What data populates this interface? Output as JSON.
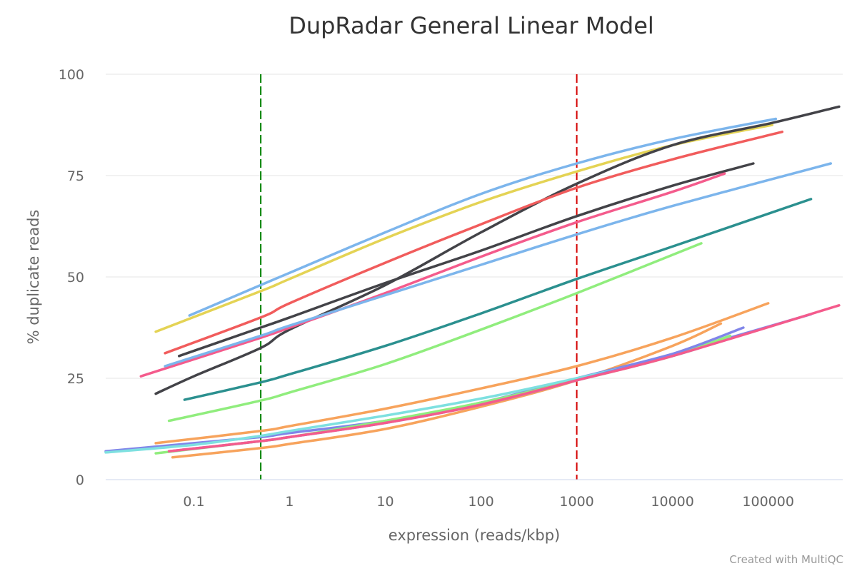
{
  "chart_data": {
    "type": "line",
    "title": "DupRadar General Linear Model",
    "xlabel": "expression (reads/kbp)",
    "ylabel": "% duplicate reads",
    "x_scale": "log",
    "xlim": [
      0.012,
      600000
    ],
    "ylim": [
      0,
      100
    ],
    "x_ticks": [
      {
        "value": 0.1,
        "label": "0.1"
      },
      {
        "value": 1,
        "label": "1"
      },
      {
        "value": 10,
        "label": "10"
      },
      {
        "value": 100,
        "label": "100"
      },
      {
        "value": 1000,
        "label": "1000"
      },
      {
        "value": 10000,
        "label": "10000"
      },
      {
        "value": 100000,
        "label": "100000"
      }
    ],
    "y_ticks": [
      {
        "value": 0,
        "label": "0"
      },
      {
        "value": 25,
        "label": "25"
      },
      {
        "value": 50,
        "label": "50"
      },
      {
        "value": 75,
        "label": "75"
      },
      {
        "value": 100,
        "label": "100"
      }
    ],
    "grid": {
      "horizontal": true,
      "vertical": false
    },
    "reference_lines": [
      {
        "x": 0.5,
        "color": "#008000",
        "dash": "dashed"
      },
      {
        "x": 1000,
        "color": "#d40000",
        "dash": "dashed"
      }
    ],
    "credit": "Created with MultiQC",
    "series": [
      {
        "color": "#7cb5ec",
        "x": [
          0.09,
          0.5,
          1,
          10,
          100,
          1000,
          10000,
          120000
        ],
        "y": [
          40.5,
          48,
          51,
          61,
          70.5,
          78,
          84,
          89
        ]
      },
      {
        "color": "#e4d354",
        "x": [
          0.04,
          0.5,
          1,
          10,
          100,
          1000,
          10000,
          110000
        ],
        "y": [
          36.5,
          46.5,
          49.5,
          59.5,
          68.5,
          76,
          82.5,
          87.5
        ]
      },
      {
        "color": "#434348",
        "x": [
          0.04,
          0.1,
          0.5,
          1,
          10,
          100,
          1000,
          10000,
          110000,
          550000
        ],
        "y": [
          21.2,
          25.5,
          32.5,
          37,
          48,
          61,
          73,
          82.5,
          88,
          92
        ]
      },
      {
        "color": "#f15c5c",
        "x": [
          0.05,
          0.5,
          1,
          10,
          100,
          1000,
          10000,
          140000
        ],
        "y": [
          31.2,
          40,
          43.5,
          53.5,
          63,
          72,
          79,
          85.8
        ]
      },
      {
        "color": "#434348",
        "x": [
          0.07,
          0.5,
          1,
          10,
          100,
          1000,
          10000,
          70000
        ],
        "y": [
          30.5,
          37.5,
          40,
          48.5,
          56.5,
          65,
          72.5,
          78
        ]
      },
      {
        "color": "#f45b8c",
        "x": [
          0.028,
          0.5,
          1,
          10,
          100,
          1000,
          10000,
          35000
        ],
        "y": [
          25.5,
          35,
          37.5,
          46,
          55,
          63.5,
          71,
          75.5
        ]
      },
      {
        "color": "#7cb5ec",
        "x": [
          0.05,
          0.5,
          1,
          10,
          100,
          1000,
          10000,
          450000
        ],
        "y": [
          28,
          35.5,
          38,
          45.5,
          53,
          60.5,
          67.5,
          78
        ]
      },
      {
        "color": "#2b908f",
        "x": [
          0.08,
          0.5,
          1,
          10,
          100,
          1000,
          10000,
          280000
        ],
        "y": [
          19.7,
          24,
          26,
          33,
          41,
          49.5,
          57.5,
          69.2
        ]
      },
      {
        "color": "#90ed7d",
        "x": [
          0.055,
          0.5,
          1,
          10,
          100,
          1000,
          20000
        ],
        "y": [
          14.5,
          19.5,
          21.5,
          28.5,
          37,
          46,
          58.3
        ]
      },
      {
        "color": "#f7a35c",
        "x": [
          0.04,
          0.5,
          1,
          10,
          100,
          1000,
          10000,
          100000
        ],
        "y": [
          9,
          12,
          13.2,
          17.5,
          22.5,
          28,
          35,
          43.5
        ]
      },
      {
        "color": "#f7a35c",
        "x": [
          0.06,
          0.5,
          1,
          10,
          100,
          1000,
          10000,
          32000
        ],
        "y": [
          5.5,
          7.8,
          8.8,
          12.5,
          18,
          24.5,
          33,
          38.5
        ]
      },
      {
        "color": "#8085e9",
        "x": [
          0.012,
          0.1,
          0.5,
          1,
          10,
          100,
          1000,
          10000,
          280000
        ],
        "y": [
          7,
          9,
          10.5,
          11.5,
          14.5,
          19,
          25,
          31,
          40.8
        ]
      },
      {
        "color": "#7ee0e0",
        "x": [
          0.012,
          0.1,
          0.5,
          1,
          10,
          100,
          1000,
          10000,
          40000
        ],
        "y": [
          6.7,
          8.6,
          10.8,
          12,
          15.8,
          20,
          25,
          30.5,
          35
        ]
      },
      {
        "color": "#90ed7d",
        "x": [
          0.04,
          0.5,
          1,
          10,
          100,
          1000,
          10000,
          40000
        ],
        "y": [
          6.5,
          9.5,
          10.5,
          14.5,
          19,
          24.5,
          30.5,
          35.5
        ]
      },
      {
        "color": "#8085e9",
        "x": [
          0.055,
          0.5,
          1,
          10,
          100,
          1000,
          10000,
          55000
        ],
        "y": [
          7,
          9.5,
          10.5,
          14,
          18.5,
          24.5,
          31,
          37.5
        ]
      },
      {
        "color": "#f45b8c",
        "x": [
          0.055,
          0.5,
          1,
          10,
          100,
          1000,
          10000,
          550000
        ],
        "y": [
          7,
          9.5,
          10.5,
          14,
          18.5,
          24.5,
          30.5,
          43
        ]
      }
    ]
  }
}
